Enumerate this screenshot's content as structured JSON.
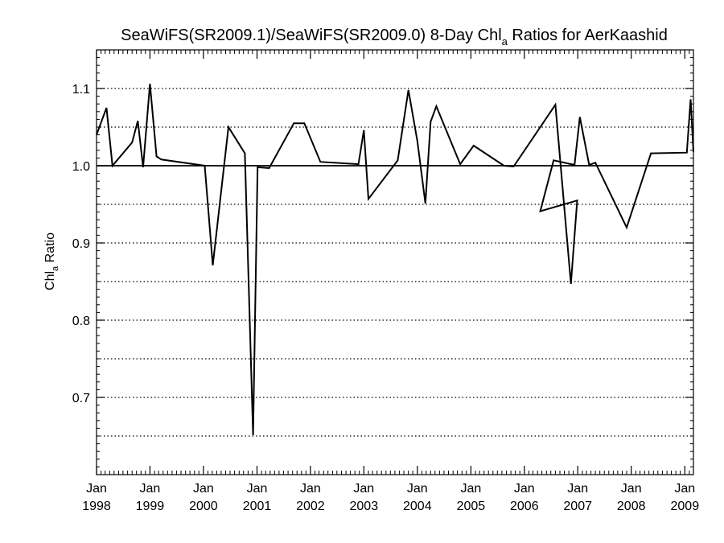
{
  "chart_data": {
    "type": "line",
    "title": {
      "before": "SeaWiFS(SR2009.1)/SeaWiFS(SR2009.0) 8-Day Chl",
      "sub": "a",
      "after": " Ratios for AerKaashid"
    },
    "ylabel": {
      "main": "Chl",
      "sub": "a",
      "after": " Ratio"
    },
    "xlabel": "",
    "xlim": [
      "1998-01-01",
      "2009-03-01"
    ],
    "ylim": [
      0.6,
      1.15
    ],
    "yticks": [
      "0.7",
      "0.8",
      "0.9",
      "1.0",
      "1.1"
    ],
    "ytick_values": [
      0.7,
      0.8,
      0.9,
      1.0,
      1.1
    ],
    "xticks": [
      {
        "date": "1998-01-01",
        "month": "Jan",
        "year": "1998"
      },
      {
        "date": "1999-01-01",
        "month": "Jan",
        "year": "1999"
      },
      {
        "date": "2000-01-01",
        "month": "Jan",
        "year": "2000"
      },
      {
        "date": "2001-01-01",
        "month": "Jan",
        "year": "2001"
      },
      {
        "date": "2002-01-01",
        "month": "Jan",
        "year": "2002"
      },
      {
        "date": "2003-01-01",
        "month": "Jan",
        "year": "2003"
      },
      {
        "date": "2004-01-01",
        "month": "Jan",
        "year": "2004"
      },
      {
        "date": "2005-01-01",
        "month": "Jan",
        "year": "2005"
      },
      {
        "date": "2006-01-01",
        "month": "Jan",
        "year": "2006"
      },
      {
        "date": "2007-01-01",
        "month": "Jan",
        "year": "2007"
      },
      {
        "date": "2008-01-01",
        "month": "Jan",
        "year": "2008"
      },
      {
        "date": "2009-01-01",
        "month": "Jan",
        "year": "2009"
      }
    ],
    "gridlines_y": [
      0.65,
      0.7,
      0.75,
      0.8,
      0.85,
      0.9,
      0.95,
      1.05,
      1.1
    ],
    "grid_style": "dotted horizontal",
    "reference_line": 1.0,
    "series": [
      {
        "color": "#000000",
        "points": [
          [
            "1998-01-01",
            1.04
          ],
          [
            "1998-03-10",
            1.075
          ],
          [
            "1998-04-20",
            1.0
          ],
          [
            "1998-09-01",
            1.03
          ],
          [
            "1998-10-10",
            1.058
          ],
          [
            "1998-11-15",
            0.998
          ],
          [
            "1999-01-01",
            1.106
          ],
          [
            "1999-02-15",
            1.012
          ],
          [
            "1999-03-20",
            1.008
          ],
          [
            "2000-01-10",
            1.0
          ],
          [
            "2000-03-05",
            0.871
          ],
          [
            "2000-06-20",
            1.05
          ],
          [
            "2000-10-10",
            1.016
          ],
          [
            "2000-12-05",
            0.651
          ],
          [
            "2001-01-05",
            0.998
          ],
          [
            "2001-03-25",
            0.997
          ],
          [
            "2001-09-10",
            1.055
          ],
          [
            "2001-11-20",
            1.055
          ],
          [
            "2002-03-10",
            1.005
          ],
          [
            "2002-11-25",
            1.002
          ],
          [
            "2003-01-01",
            1.046
          ],
          [
            "2003-02-01",
            0.957
          ],
          [
            "2003-08-20",
            1.007
          ],
          [
            "2003-11-01",
            1.098
          ],
          [
            "2004-01-01",
            1.032
          ],
          [
            "2004-02-25",
            0.951
          ],
          [
            "2004-04-01",
            1.057
          ],
          [
            "2004-05-10",
            1.077
          ],
          [
            "2004-10-20",
            1.002
          ],
          [
            "2005-01-20",
            1.026
          ],
          [
            "2005-08-15",
            1.0
          ],
          [
            "2005-10-20",
            0.999
          ],
          [
            "2006-08-01",
            1.079
          ],
          [
            "2006-11-15",
            0.847
          ],
          [
            "2006-12-28",
            0.955
          ],
          [
            "2006-04-20",
            0.941
          ],
          [
            "2006-07-20",
            1.007
          ],
          [
            "2006-12-10",
            1.001
          ],
          [
            "2007-01-15",
            1.063
          ],
          [
            "2007-03-20",
            1.001
          ],
          [
            "2007-05-01",
            1.004
          ],
          [
            "2007-12-01",
            0.92
          ],
          [
            "2008-05-15",
            1.016
          ],
          [
            "2009-01-15",
            1.017
          ],
          [
            "2009-02-10",
            1.086
          ],
          [
            "2009-03-01",
            1.018
          ]
        ]
      }
    ]
  }
}
